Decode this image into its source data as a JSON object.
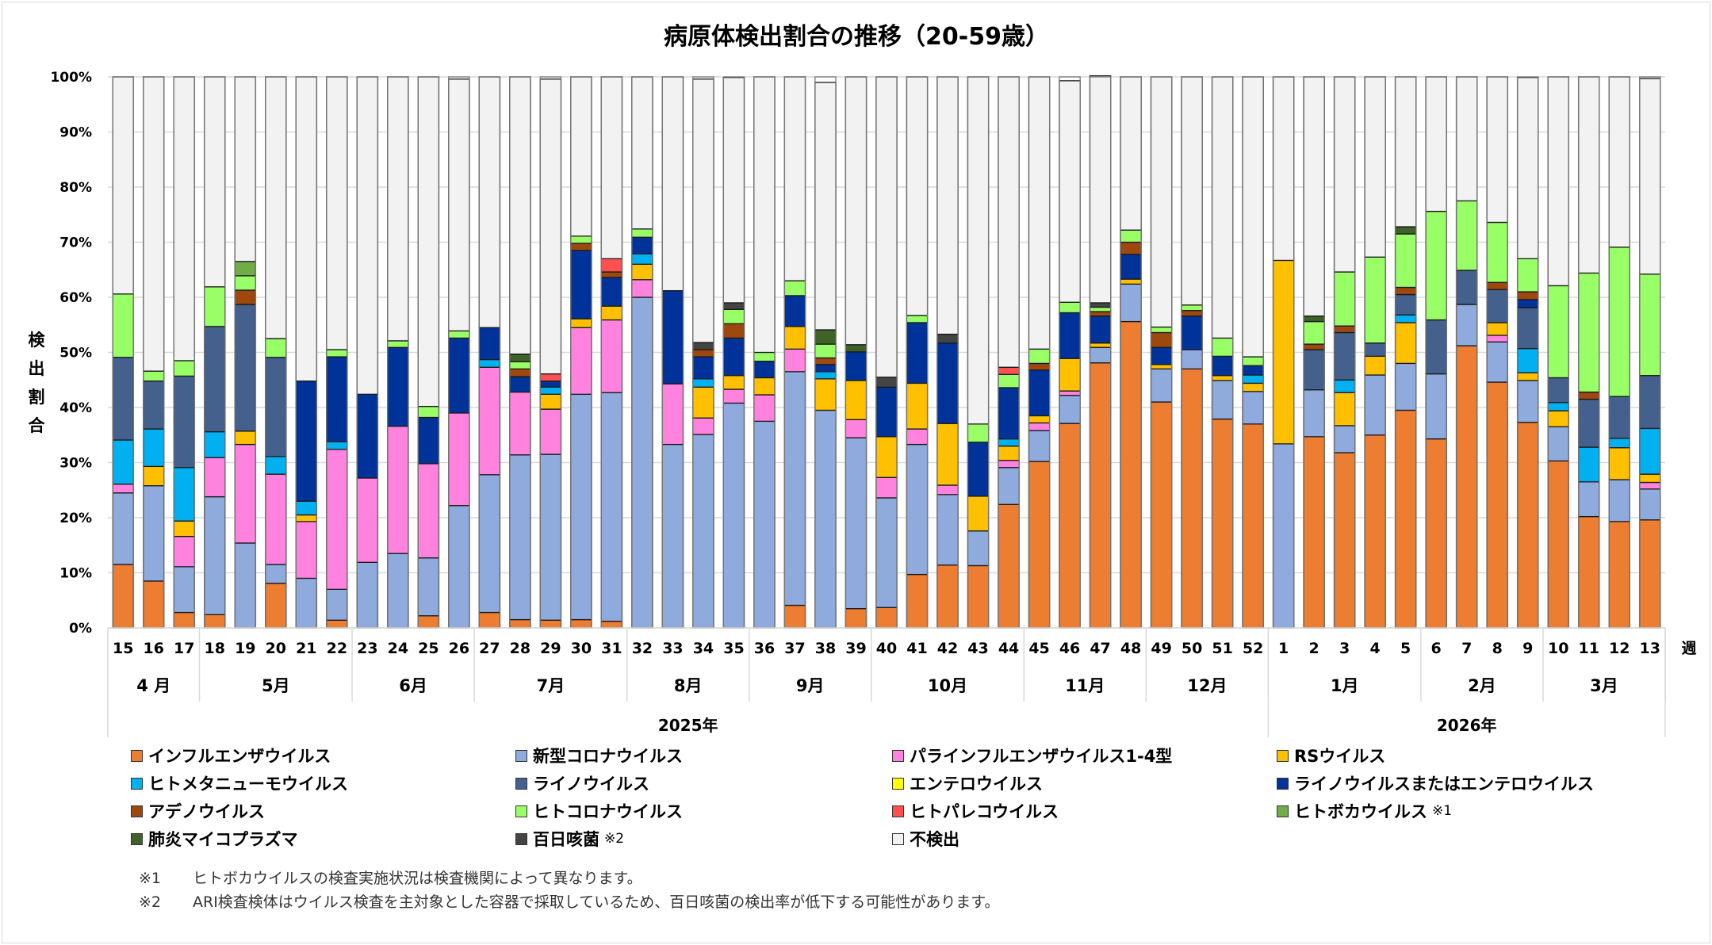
{
  "chart_data": {
    "type": "bar",
    "stacked": true,
    "title": "病原体検出割合の推移（20-59歳）",
    "ylabel": "検出割合",
    "xlabel": "週",
    "ylim": [
      0,
      100
    ],
    "yticks": [
      "0%",
      "10%",
      "20%",
      "30%",
      "40%",
      "50%",
      "60%",
      "70%",
      "80%",
      "90%",
      "100%"
    ],
    "grid": true,
    "legend_position": "bottom",
    "categories": [
      "15",
      "16",
      "17",
      "18",
      "19",
      "20",
      "21",
      "22",
      "23",
      "24",
      "25",
      "26",
      "27",
      "28",
      "29",
      "30",
      "31",
      "32",
      "33",
      "34",
      "35",
      "36",
      "37",
      "38",
      "39",
      "40",
      "41",
      "42",
      "43",
      "44",
      "45",
      "46",
      "47",
      "48",
      "49",
      "50",
      "51",
      "52",
      "1",
      "2",
      "3",
      "4",
      "5",
      "6",
      "7",
      "8",
      "9",
      "10",
      "11",
      "12",
      "13"
    ],
    "months": [
      {
        "label": "4 月",
        "weeks": 3
      },
      {
        "label": "5月",
        "weeks": 5
      },
      {
        "label": "6月",
        "weeks": 4
      },
      {
        "label": "7月",
        "weeks": 5
      },
      {
        "label": "8月",
        "weeks": 4
      },
      {
        "label": "9月",
        "weeks": 4
      },
      {
        "label": "10月",
        "weeks": 5
      },
      {
        "label": "11月",
        "weeks": 4
      },
      {
        "label": "12月",
        "weeks": 4
      },
      {
        "label": "1月",
        "weeks": 5
      },
      {
        "label": "2月",
        "weeks": 4
      },
      {
        "label": "3月",
        "weeks": 4
      }
    ],
    "years": [
      {
        "label": "2025年",
        "weeks": 38
      },
      {
        "label": "2026年",
        "weeks": 13
      }
    ],
    "series": [
      {
        "name": "インフルエンザウイルス",
        "color": "#ED7D31",
        "values": [
          11.5,
          8.5,
          2.8,
          2.4,
          0,
          8.1,
          0,
          1.4,
          0,
          0,
          2.2,
          0,
          2.8,
          1.5,
          1.4,
          1.5,
          1.2,
          0,
          0,
          0,
          0,
          0,
          4.1,
          0,
          3.5,
          3.7,
          9.7,
          11.4,
          11.3,
          22.4,
          30.2,
          37.1,
          48.1,
          55.6,
          41,
          47,
          37.9,
          37,
          0,
          34.7,
          31.8,
          35,
          39.5,
          34.3,
          51.2,
          44.6,
          37.3,
          30.3,
          20.2,
          19.3,
          19.6
        ]
      },
      {
        "name": "新型コロナウイルス",
        "color": "#8FAADC",
        "values": [
          13,
          17.3,
          8.3,
          21.4,
          15.4,
          3.4,
          9,
          5.6,
          11.9,
          13.5,
          10.5,
          22.2,
          25,
          29.9,
          30.1,
          40.9,
          41.5,
          60,
          33.3,
          35.1,
          40.8,
          37.5,
          42.4,
          39.5,
          31,
          19.9,
          23.6,
          12.8,
          6.3,
          6.7,
          5.6,
          5.1,
          2.8,
          6.8,
          6,
          3.5,
          7,
          5.9,
          33.4,
          8.5,
          4.9,
          10.9,
          8.5,
          11.8,
          7.5,
          7.3,
          7.6,
          6.2,
          6.3,
          7.6,
          5.6
        ]
      },
      {
        "name": "パラインフルエンザウイルス1-4型",
        "color": "#FF83DE",
        "values": [
          1.6,
          0,
          5.5,
          7.1,
          17.9,
          16.4,
          10.3,
          25.4,
          15.3,
          23.1,
          17.1,
          16.8,
          19.5,
          11.4,
          8.2,
          12.1,
          13.2,
          3.2,
          11,
          3,
          2.5,
          4.8,
          4.1,
          0,
          3.3,
          3.7,
          2.8,
          1.7,
          0,
          1.3,
          1.4,
          0.8,
          0,
          0,
          0,
          0,
          0,
          0,
          0,
          0,
          0,
          0,
          0,
          0,
          0,
          1.2,
          0,
          0,
          0,
          0,
          1.2
        ]
      },
      {
        "name": "RSウイルス",
        "color": "#FFC000",
        "values": [
          0,
          3.5,
          2.8,
          0,
          2.4,
          0,
          1.2,
          0,
          0,
          0,
          0,
          0,
          0,
          0,
          2.7,
          1.6,
          2.5,
          2.8,
          0,
          5.6,
          2.5,
          3.1,
          4.1,
          5.7,
          7.1,
          7.4,
          8.3,
          11.2,
          6.3,
          2.6,
          1.3,
          5.9,
          0.8,
          0.9,
          0.8,
          0,
          0.9,
          1.5,
          33.3,
          0,
          6,
          3.4,
          7.4,
          0,
          0,
          2.3,
          1.4,
          2.9,
          0,
          5.8,
          1.5
        ]
      },
      {
        "name": "ヒトメタニューモウイルス",
        "color": "#00B0F0",
        "values": [
          8,
          6.8,
          9.7,
          4.7,
          0,
          3.2,
          2.5,
          1.4,
          0,
          0,
          0,
          0,
          1.4,
          0,
          1.3,
          0,
          0,
          1.9,
          0,
          1.5,
          0,
          0,
          0,
          1.3,
          0,
          0,
          0,
          0,
          0,
          1.3,
          0,
          0,
          0,
          0,
          0,
          0,
          0,
          1.5,
          0,
          0,
          2.3,
          0,
          1.4,
          0,
          0,
          0,
          4.4,
          1.5,
          6.3,
          1.7,
          8.3
        ]
      },
      {
        "name": "ライノウイルス",
        "color": "#44608D",
        "values": [
          15,
          8.7,
          16.6,
          19.1,
          23,
          18,
          0,
          0,
          0,
          0,
          0,
          0,
          0,
          0,
          0,
          0,
          0,
          0,
          0,
          0,
          0,
          0,
          0,
          0,
          0,
          0,
          0,
          0,
          0,
          0,
          0,
          0,
          0,
          0,
          0,
          0,
          0,
          0,
          0,
          7.3,
          8.6,
          2.4,
          3.7,
          9.8,
          6.2,
          6,
          7.4,
          4.5,
          8.7,
          7.6,
          9.6
        ]
      },
      {
        "name": "エンテロウイルス",
        "color": "#FFFF00",
        "values": [
          0,
          0,
          0,
          0,
          0,
          0,
          0,
          0,
          0,
          0,
          0,
          0,
          0,
          0,
          0,
          0,
          0,
          0,
          0,
          0,
          0,
          0,
          0,
          0,
          0,
          0,
          0,
          0,
          0,
          0,
          0,
          0,
          0,
          0,
          0,
          0,
          0,
          0,
          0,
          0,
          0,
          0,
          0,
          0,
          0,
          0,
          0,
          0,
          0,
          0,
          0
        ]
      },
      {
        "name": "ライノウイルスまたはエンテロウイルス",
        "color": "#003399",
        "values": [
          0,
          0,
          0,
          0,
          0,
          0,
          21.8,
          15.4,
          15.2,
          14.3,
          8.4,
          13.6,
          5.8,
          2.8,
          1.1,
          12.4,
          5.2,
          3,
          16.9,
          4,
          6.8,
          3,
          5.6,
          1.3,
          5.2,
          9,
          11,
          14.6,
          9.8,
          9.3,
          8.3,
          8.3,
          4.9,
          4.5,
          3.1,
          6.1,
          3.5,
          1.7,
          0,
          0,
          0,
          0,
          0,
          0,
          0,
          0,
          1.5,
          0,
          0,
          0,
          0
        ]
      },
      {
        "name": "アデノウイルス",
        "color": "#9E480E",
        "values": [
          0,
          0,
          0,
          0,
          2.6,
          0,
          0,
          0,
          0,
          0,
          0,
          0,
          0,
          1.4,
          0,
          1.3,
          1,
          0,
          0,
          1.3,
          2.6,
          0,
          0,
          1.2,
          0,
          0,
          0,
          0,
          0,
          0,
          1.2,
          0,
          0.8,
          2.2,
          2.7,
          1,
          0,
          0,
          0,
          1,
          1.2,
          0,
          1.3,
          0,
          0,
          1.3,
          1.4,
          0,
          1.3,
          0,
          0
        ]
      },
      {
        "name": "ヒトコロナウイルス",
        "color": "#99FF66",
        "values": [
          11.5,
          1.8,
          2.8,
          7.2,
          2.6,
          3.4,
          0,
          1.3,
          0,
          1.2,
          2,
          1.3,
          0,
          1.3,
          0,
          1.3,
          0,
          1.5,
          0,
          0,
          2.6,
          1.6,
          2.7,
          2.5,
          0,
          0,
          1.3,
          0,
          3.3,
          2.4,
          2.6,
          1.9,
          0.8,
          2.2,
          1,
          1,
          3.3,
          1.6,
          0,
          4.1,
          9.8,
          15.6,
          9.7,
          19.7,
          12.6,
          10.9,
          6,
          16.7,
          21.6,
          27.1,
          18.4
        ]
      },
      {
        "name": "ヒトパレコウイルス",
        "color": "#FF5050",
        "values": [
          0,
          0,
          0,
          0,
          0,
          0,
          0,
          0,
          0,
          0,
          0,
          0,
          0,
          0,
          1.3,
          0,
          2.4,
          0,
          0,
          0,
          0,
          0,
          0,
          0,
          0,
          0,
          0,
          0,
          0,
          1.3,
          0,
          0,
          0,
          0,
          0,
          0,
          0,
          0,
          0,
          0,
          0,
          0,
          0,
          0,
          0,
          0,
          0,
          0,
          0,
          0,
          0
        ]
      },
      {
        "name": "ヒトボカウイルス",
        "note": "※1",
        "color": "#70AD47",
        "values": [
          0,
          0,
          0,
          0,
          2.6,
          0,
          0,
          0,
          0,
          0,
          0,
          0,
          0,
          0,
          0,
          0,
          0,
          0,
          0,
          0,
          0,
          0,
          0,
          0,
          0,
          0,
          0,
          0,
          0,
          0,
          0,
          0,
          0,
          0,
          0,
          0,
          0,
          0,
          0,
          0,
          0,
          0,
          0,
          0,
          0,
          0,
          0,
          0,
          0,
          0,
          0
        ]
      },
      {
        "name": "肺炎マイコプラズマ",
        "color": "#3F6229",
        "values": [
          0,
          0,
          0,
          0,
          0,
          0,
          0,
          0,
          0,
          0,
          0,
          0,
          0,
          1.4,
          0,
          0,
          0,
          0,
          0,
          0,
          0,
          0,
          0,
          2.6,
          1.3,
          0,
          0,
          0,
          0,
          0,
          0,
          0,
          0,
          0,
          0,
          0,
          0,
          0,
          0,
          1,
          0,
          0,
          1.3,
          0,
          0,
          0,
          0,
          0,
          0,
          0,
          0
        ]
      },
      {
        "name": "百日咳菌",
        "note": "※2",
        "color": "#444444",
        "values": [
          0,
          0,
          0,
          0,
          0,
          0,
          0,
          0,
          0,
          0,
          0,
          0,
          0,
          0,
          0,
          0,
          0,
          0,
          0,
          1.3,
          1.2,
          0,
          0,
          0,
          0,
          1.8,
          0,
          1.6,
          0,
          0,
          0,
          0,
          0.8,
          0,
          0,
          0,
          0,
          0,
          0,
          0,
          0,
          0,
          0,
          0,
          0,
          0,
          0,
          0,
          0,
          0,
          0
        ]
      },
      {
        "name": "不検出",
        "color": "#F2F2F2",
        "values": [
          39.4,
          53.4,
          51.5,
          38.1,
          33.5,
          47.5,
          55.2,
          49.5,
          57.6,
          47.9,
          59.8,
          45.7,
          45.5,
          50.3,
          53.5,
          28.9,
          33,
          27.6,
          38.8,
          47.8,
          40.9,
          50,
          37,
          44.9,
          48.6,
          54.5,
          43.3,
          46.7,
          63,
          52.7,
          49.4,
          40.2,
          41.2,
          27.8,
          45.4,
          41.4,
          47.4,
          50.8,
          33.3,
          43.4,
          35.4,
          32.7,
          27.2,
          24.4,
          22.5,
          26.4,
          32.9,
          37.9,
          35.6,
          30.9,
          35.5
        ]
      }
    ]
  },
  "footnotes": [
    {
      "mark": "※1",
      "text": "ヒトボカウイルスの検査実施状況は検査機関によって異なります。"
    },
    {
      "mark": "※2",
      "text": "ARI検査検体はウイルス検査を主対象とした容器で採取しているため、百日咳菌の検出率が低下する可能性があります。"
    }
  ]
}
